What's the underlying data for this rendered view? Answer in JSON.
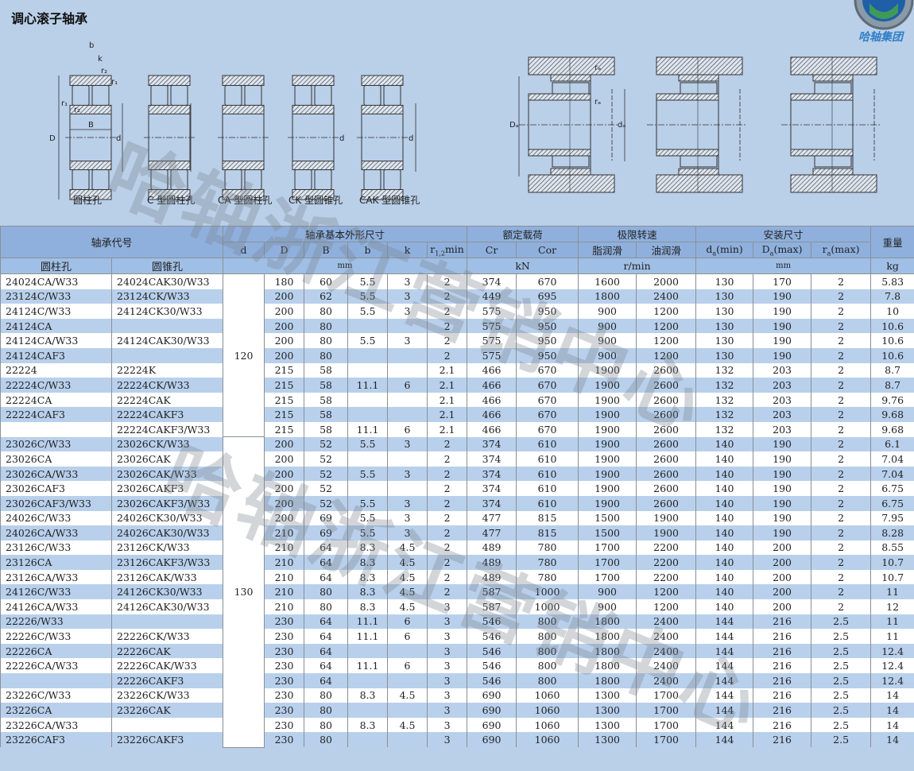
{
  "title": "调心滚子轴承",
  "logo_text": "哈轴集团",
  "watermark": "哈轴浙江营销中心",
  "diagram_labels": [
    "圆柱孔",
    "C 型圆柱孔",
    "CA 型圆柱孔",
    "CK 型圆锥孔",
    "CAK 型圆锥孔"
  ],
  "diagram_dim_labels": {
    "D": "D",
    "d": "d",
    "B": "B",
    "b": "b",
    "k": "k",
    "r1": "r₁",
    "r2": "r₂",
    "Da": "Dₐ",
    "da": "dₐ",
    "ra": "rₐ"
  },
  "colors": {
    "header": "#8fb0dd",
    "stripe": "#b8d0ec",
    "background": "#bacfe8",
    "logo": "#2f7fc8"
  },
  "header": {
    "code": "轴承代号",
    "dims": "轴承基本外形尺寸",
    "load": "额定载荷",
    "speed": "极限转速",
    "install": "安装尺寸",
    "weight": "重量",
    "d": "d",
    "D": "D",
    "B": "B",
    "b": "b",
    "k": "k",
    "r": "r",
    "r_sub": "1,2",
    "r_suffix": "min",
    "Cr": "Cr",
    "Cor": "Cor",
    "grease": "脂润滑",
    "oil": "油润滑",
    "da": "d",
    "da_sub": "a",
    "da_suffix": "(min)",
    "Da": "D",
    "Da_sub": "a",
    "Da_suffix": "(max)",
    "ra": "r",
    "ra_sub": "a",
    "ra_suffix": "(max)",
    "cyl": "圆柱孔",
    "taper": "圆锥孔",
    "unit_mm": "mm",
    "unit_kN": "kN",
    "unit_rpm": "r/min",
    "unit_mm2": "mm",
    "unit_kg": "kg"
  },
  "groups": [
    {
      "d": "120",
      "rows": [
        [
          "24024CA/W33",
          "24024CAK30/W33",
          "180",
          "60",
          "5.5",
          "3",
          "2",
          "374",
          "670",
          "1600",
          "2000",
          "130",
          "170",
          "2",
          "5.83"
        ],
        [
          "23124C/W33",
          "23124CK/W33",
          "200",
          "62",
          "5.5",
          "3",
          "2",
          "449",
          "695",
          "1800",
          "2400",
          "130",
          "190",
          "2",
          "7.8"
        ],
        [
          "24124C/W33",
          "24124CK30/W33",
          "200",
          "80",
          "5.5",
          "3",
          "2",
          "575",
          "950",
          "900",
          "1200",
          "130",
          "190",
          "2",
          "10"
        ],
        [
          "24124CA",
          "",
          "200",
          "80",
          "",
          "",
          "2",
          "575",
          "950",
          "900",
          "1200",
          "130",
          "190",
          "2",
          "10.6"
        ],
        [
          "24124CA/W33",
          "24124CAK30/W33",
          "200",
          "80",
          "5.5",
          "3",
          "2",
          "575",
          "950",
          "900",
          "1200",
          "130",
          "190",
          "2",
          "10.6"
        ],
        [
          "24124CAF3",
          "",
          "200",
          "80",
          "",
          "",
          "2",
          "575",
          "950",
          "900",
          "1200",
          "130",
          "190",
          "2",
          "10.6"
        ],
        [
          "22224",
          "22224K",
          "215",
          "58",
          "",
          "",
          "2.1",
          "466",
          "670",
          "1900",
          "2600",
          "132",
          "203",
          "2",
          "8.7"
        ],
        [
          "22224C/W33",
          "22224CK/W33",
          "215",
          "58",
          "11.1",
          "6",
          "2.1",
          "466",
          "670",
          "1900",
          "2600",
          "132",
          "203",
          "2",
          "8.7"
        ],
        [
          "22224CA",
          "22224CAK",
          "215",
          "58",
          "",
          "",
          "2.1",
          "466",
          "670",
          "1900",
          "2600",
          "132",
          "203",
          "2",
          "9.76"
        ],
        [
          "22224CAF3",
          "22224CAKF3",
          "215",
          "58",
          "",
          "",
          "2.1",
          "466",
          "670",
          "1900",
          "2600",
          "132",
          "203",
          "2",
          "9.68"
        ],
        [
          "",
          "22224CAKF3/W33",
          "215",
          "58",
          "11.1",
          "6",
          "2.1",
          "466",
          "670",
          "1900",
          "2600",
          "132",
          "203",
          "2",
          "9.68"
        ]
      ]
    },
    {
      "d": "130",
      "rows": [
        [
          "23026C/W33",
          "23026CK/W33",
          "200",
          "52",
          "5.5",
          "3",
          "2",
          "374",
          "610",
          "1900",
          "2600",
          "140",
          "190",
          "2",
          "6.1"
        ],
        [
          "23026CA",
          "23026CAK",
          "200",
          "52",
          "",
          "",
          "2",
          "374",
          "610",
          "1900",
          "2600",
          "140",
          "190",
          "2",
          "7.04"
        ],
        [
          "23026CA/W33",
          "23026CAK/W33",
          "200",
          "52",
          "5.5",
          "3",
          "2",
          "374",
          "610",
          "1900",
          "2600",
          "140",
          "190",
          "2",
          "7.04"
        ],
        [
          "23026CAF3",
          "23026CAKF3",
          "200",
          "52",
          "",
          "",
          "2",
          "374",
          "610",
          "1900",
          "2600",
          "140",
          "190",
          "2",
          "6.75"
        ],
        [
          "23026CAF3/W33",
          "23026CAKF3/W33",
          "200",
          "52",
          "5.5",
          "3",
          "2",
          "374",
          "610",
          "1900",
          "2600",
          "140",
          "190",
          "2",
          "6.75"
        ],
        [
          "24026C/W33",
          "24026CK30/W33",
          "200",
          "69",
          "5.5",
          "3",
          "2",
          "477",
          "815",
          "1500",
          "1900",
          "140",
          "190",
          "2",
          "7.95"
        ],
        [
          "24026CA/W33",
          "24026CAK30/W33",
          "210",
          "69",
          "5.5",
          "3",
          "2",
          "477",
          "815",
          "1500",
          "1900",
          "140",
          "190",
          "2",
          "8.28"
        ],
        [
          "23126C/W33",
          "23126CK/W33",
          "210",
          "64",
          "8.3",
          "4.5",
          "2",
          "489",
          "780",
          "1700",
          "2200",
          "140",
          "200",
          "2",
          "8.55"
        ],
        [
          "23126CA",
          "23126CAKF3/W33",
          "210",
          "64",
          "8.3",
          "4.5",
          "2",
          "489",
          "780",
          "1700",
          "2200",
          "140",
          "200",
          "2",
          "10.7"
        ],
        [
          "23126CA/W33",
          "23126CAK/W33",
          "210",
          "64",
          "8.3",
          "4.5",
          "2",
          "489",
          "780",
          "1700",
          "2200",
          "140",
          "200",
          "2",
          "10.7"
        ],
        [
          "24126C/W33",
          "24126CK30/W33",
          "210",
          "80",
          "8.3",
          "4.5",
          "2",
          "587",
          "1000",
          "900",
          "1200",
          "140",
          "200",
          "2",
          "11"
        ],
        [
          "24126CA/W33",
          "24126CAK30/W33",
          "210",
          "80",
          "8.3",
          "4.5",
          "3",
          "587",
          "1000",
          "900",
          "1200",
          "140",
          "200",
          "2",
          "12"
        ],
        [
          "22226/W33",
          "",
          "230",
          "64",
          "11.1",
          "6",
          "3",
          "546",
          "800",
          "1800",
          "2400",
          "144",
          "216",
          "2.5",
          "11"
        ],
        [
          "22226C/W33",
          "22226CK/W33",
          "230",
          "64",
          "11.1",
          "6",
          "3",
          "546",
          "800",
          "1800",
          "2400",
          "144",
          "216",
          "2.5",
          "11"
        ],
        [
          "22226CA",
          "22226CAK",
          "230",
          "64",
          "",
          "",
          "3",
          "546",
          "800",
          "1800",
          "2400",
          "144",
          "216",
          "2.5",
          "12.4"
        ],
        [
          "22226CA/W33",
          "22226CAK/W33",
          "230",
          "64",
          "11.1",
          "6",
          "3",
          "546",
          "800",
          "1800",
          "2400",
          "144",
          "216",
          "2.5",
          "12.4"
        ],
        [
          "",
          "22226CAKF3",
          "230",
          "64",
          "",
          "",
          "3",
          "546",
          "800",
          "1800",
          "2400",
          "144",
          "216",
          "2.5",
          "12.4"
        ],
        [
          "23226C/W33",
          "23226CK/W33",
          "230",
          "80",
          "8.3",
          "4.5",
          "3",
          "690",
          "1060",
          "1300",
          "1700",
          "144",
          "216",
          "2.5",
          "14"
        ],
        [
          "23226CA",
          "23226CAK",
          "230",
          "80",
          "",
          "",
          "3",
          "690",
          "1060",
          "1300",
          "1700",
          "144",
          "216",
          "2.5",
          "14"
        ],
        [
          "23226CA/W33",
          "",
          "230",
          "80",
          "8.3",
          "4.5",
          "3",
          "690",
          "1060",
          "1300",
          "1700",
          "144",
          "216",
          "2.5",
          "14"
        ],
        [
          "23226CAF3",
          "23226CAKF3",
          "230",
          "80",
          "",
          "",
          "3",
          "690",
          "1060",
          "1300",
          "1700",
          "144",
          "216",
          "2.5",
          "14"
        ]
      ]
    }
  ]
}
